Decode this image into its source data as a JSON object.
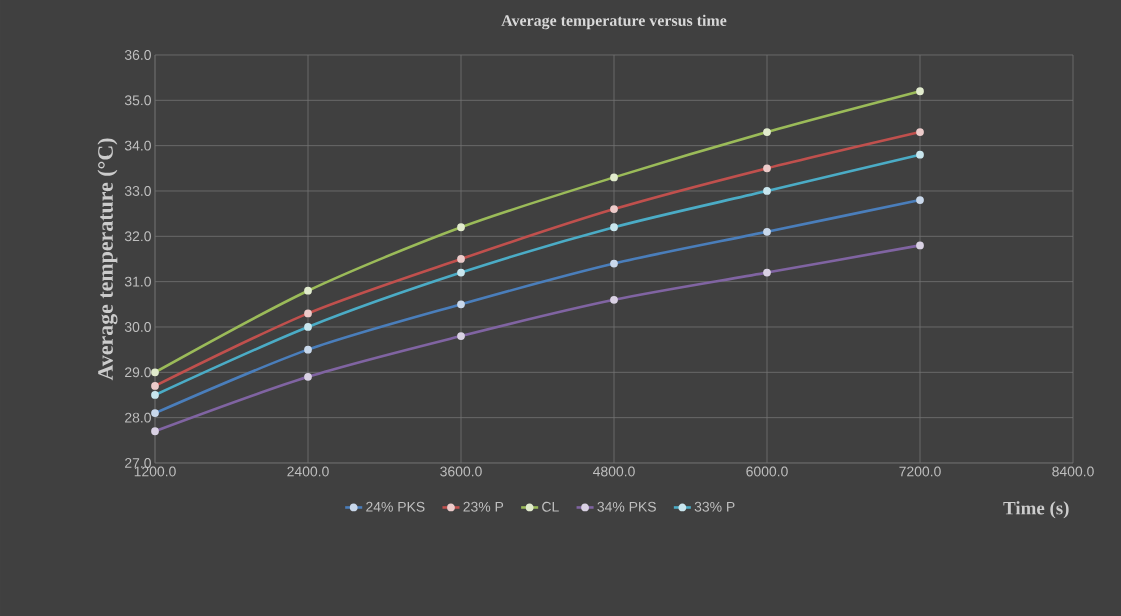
{
  "chart_data": {
    "type": "line",
    "title": "Average temperature versus time",
    "xlabel": "Time (s)",
    "ylabel": "Average temperature (°C)",
    "x": [
      1200,
      2400,
      3600,
      4800,
      6000,
      7200
    ],
    "series": [
      {
        "name": "24% PKS",
        "color": "#4a7ebb",
        "values": [
          28.1,
          29.5,
          30.5,
          31.4,
          32.1,
          32.8
        ]
      },
      {
        "name": "23% P",
        "color": "#c0504d",
        "values": [
          28.7,
          30.3,
          31.5,
          32.6,
          33.5,
          34.3
        ]
      },
      {
        "name": "CL",
        "color": "#9bbb59",
        "values": [
          29.0,
          30.8,
          32.2,
          33.3,
          34.3,
          35.2
        ]
      },
      {
        "name": "34% PKS",
        "color": "#8064a2",
        "values": [
          27.7,
          28.9,
          29.8,
          30.6,
          31.2,
          31.8
        ]
      },
      {
        "name": "33% P",
        "color": "#4bacc6",
        "values": [
          28.5,
          30.0,
          31.2,
          32.2,
          33.0,
          33.8
        ]
      }
    ],
    "xlim": [
      1200,
      8400
    ],
    "ylim": [
      27,
      36
    ],
    "xticks": [
      {
        "value": 1200,
        "label": "1200.0"
      },
      {
        "value": 2400,
        "label": "2400.0"
      },
      {
        "value": 3600,
        "label": "3600.0"
      },
      {
        "value": 4800,
        "label": "4800.0"
      },
      {
        "value": 6000,
        "label": "6000.0"
      },
      {
        "value": 7200,
        "label": "7200.0"
      },
      {
        "value": 8400,
        "label": "8400.0"
      }
    ],
    "yticks": [
      {
        "value": 27,
        "label": "27.0"
      },
      {
        "value": 28,
        "label": "28.0"
      },
      {
        "value": 29,
        "label": "29.0"
      },
      {
        "value": 30,
        "label": "30.0"
      },
      {
        "value": 31,
        "label": "31.0"
      },
      {
        "value": 32,
        "label": "32.0"
      },
      {
        "value": 33,
        "label": "33.0"
      },
      {
        "value": 34,
        "label": "34.0"
      },
      {
        "value": 35,
        "label": "35.0"
      },
      {
        "value": 36,
        "label": "36.0"
      }
    ],
    "grid": true,
    "legend": "bottom",
    "marker": "circle",
    "line_style": "solid"
  }
}
